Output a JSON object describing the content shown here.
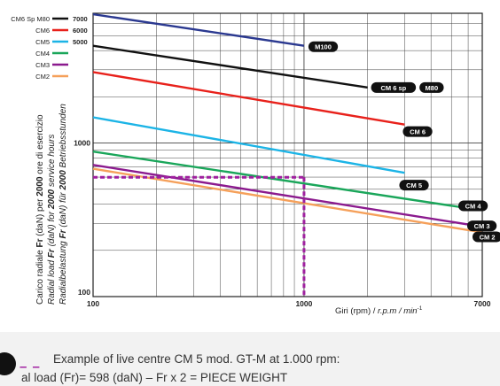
{
  "chart_data": {
    "type": "line",
    "title": "",
    "xlabel_main": "Giri (rpm) / ",
    "xlabel_italic": "r.p.m / min",
    "xlabel_sup": "-1",
    "ylabel_lines": [
      [
        "Carico radiale ",
        "Fr",
        " (daN) per ",
        "2000",
        " ore di esercizio"
      ],
      [
        "Radial load ",
        "Fr",
        " (daN) for ",
        "2000",
        " service hours"
      ],
      [
        "Radialbelastung ",
        "Fr",
        " (daN) für ",
        "2000",
        " Betriebsstunden"
      ]
    ],
    "x_scale": "log",
    "y_scale": "log",
    "xlim": [
      100,
      7000
    ],
    "ylim": [
      100,
      7000
    ],
    "x_ticks": [
      "100",
      "1000",
      "7000"
    ],
    "y_ticks": [
      "100",
      "1000"
    ],
    "grid": true,
    "series": [
      {
        "name": "M100",
        "label": "M100",
        "color": "#2b3990",
        "x": [
          100,
          1000
        ],
        "y": [
          6900,
          4300
        ]
      },
      {
        "name": "CM6 Sp M80",
        "label": "CM 6 sp",
        "label2": "M80",
        "color": "#111111",
        "x": [
          100,
          2000
        ],
        "y": [
          4300,
          2300
        ]
      },
      {
        "name": "CM6",
        "label": "CM 6",
        "color": "#e8211b",
        "x": [
          100,
          3000
        ],
        "y": [
          2900,
          1320
        ]
      },
      {
        "name": "CM5",
        "label": "CM 5",
        "color": "#1cb4e6",
        "x": [
          100,
          3000
        ],
        "y": [
          1470,
          640
        ]
      },
      {
        "name": "CM4",
        "label": "CM 4",
        "color": "#1aa65a",
        "x": [
          100,
          6500
        ],
        "y": [
          880,
          370
        ]
      },
      {
        "name": "CM3",
        "label": "CM 3",
        "color": "#8b1a8e",
        "x": [
          100,
          7000
        ],
        "y": [
          720,
          285
        ]
      },
      {
        "name": "CM2",
        "label": "CM 2",
        "color": "#f5a05a",
        "x": [
          100,
          7000
        ],
        "y": [
          680,
          262
        ]
      }
    ],
    "legend": [
      {
        "label": "CM6 Sp M80",
        "value": "7000",
        "color": "#111111"
      },
      {
        "label": "CM6",
        "value": "6000",
        "color": "#e8211b"
      },
      {
        "label": "CM5",
        "value": "5000",
        "color": "#1cb4e6"
      },
      {
        "label": "CM4",
        "value": "",
        "color": "#1aa65a"
      },
      {
        "label": "CM3",
        "value": "",
        "color": "#8b1a8e"
      },
      {
        "label": "CM2",
        "value": "",
        "color": "#f5a05a"
      }
    ],
    "example": {
      "rpm": 1000,
      "load": 598,
      "color": "#a020a0"
    }
  },
  "caption": {
    "line1": "Example of live centre CM 5 mod. GT-M at 1.000 rpm:",
    "line2": "al load (Fr)= 598 (daN) – Fr x 2 = PIECE WEIGHT",
    "legend_dash": "– –"
  }
}
